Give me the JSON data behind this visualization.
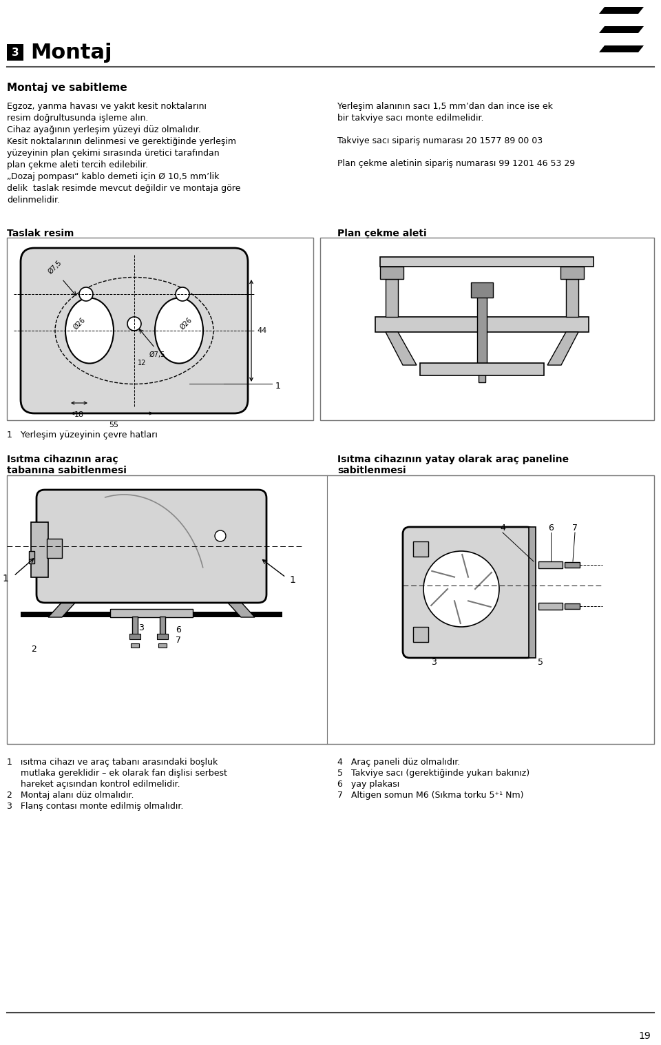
{
  "page_number": "19",
  "chapter_number": "3",
  "chapter_title": "Montaj",
  "section_title": "Montaj ve sabitleme",
  "left_col_text": [
    "Egzoz, yanma havası ve yakıt kesit noktalarını",
    "resim doğrultusunda işleme alın.",
    "Cihaz ayağının yerleşim yüzeyi düz olmalıdır.",
    "Kesit noktalarının delinmesi ve gerektiğinde yerleşim",
    "yüzeyinin plan çekimi sırasında üretici tarafından",
    "plan çekme aleti tercih edilebilir.",
    "„Dozaj pompası“ kablo demeti için Ø 10,5 mm’lik",
    "delik  taslak resimde mevcut değildir ve montaja göre",
    "delinmelidir."
  ],
  "right_col_text": [
    "Yerleşim alanının sacı 1,5 mm’dan dan ince ise ek",
    "bir takviye sacı monte edilmelidir.",
    "",
    "Takviye sacı sipariş numarası 20 1577 89 00 03",
    "",
    "Plan çekme aletinin sipariş numarası 99 1201 46 53 29"
  ],
  "taslak_label": "Taslak resim",
  "plan_label": "Plan çekme aleti",
  "dim_label1": "1   Yerleşim yüzeyinin çevre hatları",
  "section2_left_title": "Isıtma cihazının araç",
  "section2_left_title2": "tabanına sabitlenmesi",
  "section2_right_title": "Isıtma cihazının yatay olarak araç paneline",
  "section2_right_title2": "sabitlenmesi",
  "bottom_left_notes": [
    "1   ısıtma cihazı ve araç tabanı arasındaki boşluk",
    "     mutlaka gereklidir – ek olarak fan dişlisi serbest",
    "     hareket açısından kontrol edilmelidir.",
    "2   Montaj alanı düz olmalıdır.",
    "3   Flanş contası monte edilmiş olmalıdır."
  ],
  "bottom_right_notes": [
    "4   Araç paneli düz olmalıdır.",
    "5   Takviye sacı (gerektiğinde yukarı bakınız)",
    "6   yay plakası",
    "7   Altigen somun M6 (Sıkma torku 5⁺¹ Nm)"
  ],
  "bg_color": "#ffffff",
  "text_color": "#000000",
  "line_color": "#333333"
}
